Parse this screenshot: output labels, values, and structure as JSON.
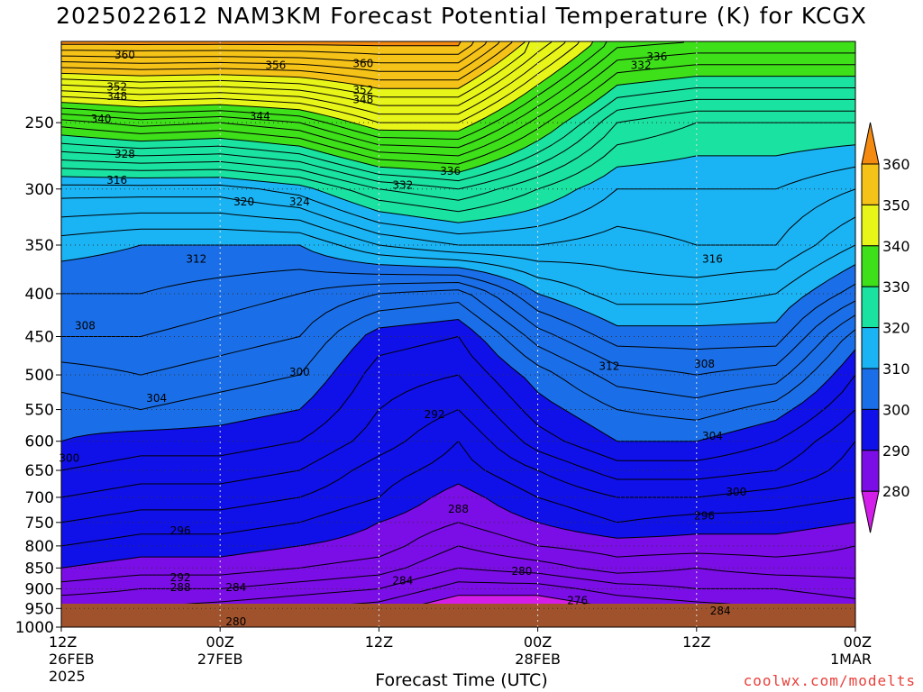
{
  "chart_data": {
    "type": "heatmap",
    "title": "2025022612 NAM3KM Forecast Potential Temperature (K) for KCGX",
    "xlabel": "Forecast Time (UTC)",
    "ylabel": "",
    "y_ticks": [
      250,
      300,
      350,
      400,
      450,
      500,
      550,
      600,
      650,
      700,
      750,
      800,
      850,
      900,
      950,
      1000
    ],
    "ylim": [
      1000,
      200
    ],
    "y_scale": "log-pressure",
    "x_ticks": [
      {
        "time": "2025-02-26T12Z",
        "lines": [
          "12Z",
          "26FEB",
          "2025"
        ]
      },
      {
        "time": "2025-02-27T00Z",
        "lines": [
          "00Z",
          "27FEB"
        ]
      },
      {
        "time": "2025-02-27T12Z",
        "lines": [
          "12Z"
        ]
      },
      {
        "time": "2025-02-28T00Z",
        "lines": [
          "00Z",
          "28FEB"
        ]
      },
      {
        "time": "2025-02-28T12Z",
        "lines": [
          "12Z"
        ]
      },
      {
        "time": "2025-03-01T00Z",
        "lines": [
          "00Z",
          "1MAR"
        ]
      }
    ],
    "colorbar": {
      "levels": [
        280,
        290,
        300,
        310,
        320,
        330,
        340,
        350,
        360
      ],
      "colors": [
        "#d21ee8",
        "#7b0de6",
        "#1010e8",
        "#1a6fe8",
        "#1ab4f5",
        "#1ae2a0",
        "#3ee01a",
        "#e8f518",
        "#f5c218",
        "#f58a10"
      ]
    },
    "terrain_color": "#a0522d",
    "grid": true,
    "contour_interval": 2,
    "contour_labels": [
      {
        "value": 360,
        "t": 0.08,
        "p": 207
      },
      {
        "value": 356,
        "t": 0.27,
        "p": 213
      },
      {
        "value": 360,
        "t": 0.38,
        "p": 212
      },
      {
        "value": 352,
        "t": 0.07,
        "p": 226
      },
      {
        "value": 348,
        "t": 0.07,
        "p": 232
      },
      {
        "value": 352,
        "t": 0.38,
        "p": 228
      },
      {
        "value": 348,
        "t": 0.38,
        "p": 234
      },
      {
        "value": 344,
        "t": 0.25,
        "p": 245
      },
      {
        "value": 340,
        "t": 0.05,
        "p": 247
      },
      {
        "value": 336,
        "t": 0.75,
        "p": 208
      },
      {
        "value": 332,
        "t": 0.73,
        "p": 213
      },
      {
        "value": 328,
        "t": 0.08,
        "p": 272
      },
      {
        "value": 336,
        "t": 0.49,
        "p": 285
      },
      {
        "value": 332,
        "t": 0.43,
        "p": 296
      },
      {
        "value": 316,
        "t": 0.07,
        "p": 292
      },
      {
        "value": 320,
        "t": 0.23,
        "p": 310
      },
      {
        "value": 324,
        "t": 0.3,
        "p": 310
      },
      {
        "value": 312,
        "t": 0.17,
        "p": 363
      },
      {
        "value": 316,
        "t": 0.82,
        "p": 363
      },
      {
        "value": 308,
        "t": 0.03,
        "p": 436
      },
      {
        "value": 312,
        "t": 0.69,
        "p": 487
      },
      {
        "value": 300,
        "t": 0.3,
        "p": 495
      },
      {
        "value": 308,
        "t": 0.81,
        "p": 484
      },
      {
        "value": 304,
        "t": 0.12,
        "p": 532
      },
      {
        "value": 292,
        "t": 0.47,
        "p": 556
      },
      {
        "value": 304,
        "t": 0.82,
        "p": 590
      },
      {
        "value": 300,
        "t": 0.01,
        "p": 627
      },
      {
        "value": 300,
        "t": 0.85,
        "p": 688
      },
      {
        "value": 288,
        "t": 0.5,
        "p": 721
      },
      {
        "value": 296,
        "t": 0.81,
        "p": 735
      },
      {
        "value": 296,
        "t": 0.15,
        "p": 765
      },
      {
        "value": 292,
        "t": 0.15,
        "p": 870
      },
      {
        "value": 288,
        "t": 0.15,
        "p": 895
      },
      {
        "value": 284,
        "t": 0.22,
        "p": 895
      },
      {
        "value": 284,
        "t": 0.43,
        "p": 878
      },
      {
        "value": 280,
        "t": 0.58,
        "p": 856
      },
      {
        "value": 276,
        "t": 0.65,
        "p": 927
      },
      {
        "value": 284,
        "t": 0.83,
        "p": 954
      },
      {
        "value": 280,
        "t": 0.22,
        "p": 983
      }
    ],
    "profiles": [
      {
        "t": 0.0,
        "theta": [
          361,
          333,
          317,
          311,
          308,
          306,
          303,
          301,
          300,
          298,
          296,
          294,
          292,
          290,
          287,
          284
        ]
      },
      {
        "t": 0.1,
        "theta": [
          361,
          335,
          317,
          310,
          308,
          306,
          304,
          302,
          299,
          297,
          295,
          293,
          291,
          289,
          286,
          284
        ]
      },
      {
        "t": 0.2,
        "theta": [
          361,
          334,
          317,
          310,
          307,
          305,
          303,
          301,
          299,
          297,
          295,
          293,
          291,
          289,
          286,
          283
        ]
      },
      {
        "t": 0.3,
        "theta": [
          361,
          336,
          319,
          310,
          306,
          304,
          302,
          300,
          298,
          296,
          294,
          292,
          290,
          288,
          285,
          282
        ]
      },
      {
        "t": 0.4,
        "theta": [
          361,
          342,
          324,
          314,
          304,
          299,
          297,
          296,
          295,
          293,
          292,
          290,
          289,
          287,
          284,
          281
        ]
      },
      {
        "t": 0.5,
        "theta": [
          361,
          342,
          326,
          316,
          303,
          298,
          296,
          294,
          292,
          291,
          289,
          288,
          286,
          284,
          281,
          278
        ]
      },
      {
        "t": 0.6,
        "theta": [
          348,
          333,
          322,
          316,
          310,
          305,
          301,
          299,
          297,
          294,
          292,
          290,
          288,
          285,
          281,
          278
        ]
      },
      {
        "t": 0.7,
        "theta": [
          337,
          324,
          318,
          315,
          313,
          309,
          305,
          302,
          300,
          297,
          294,
          292,
          289,
          287,
          283,
          280
        ]
      },
      {
        "t": 0.8,
        "theta": [
          336,
          322,
          318,
          316,
          313,
          309,
          306,
          303,
          300,
          297,
          294,
          291,
          289,
          286,
          284,
          281
        ]
      },
      {
        "t": 0.9,
        "theta": [
          336,
          322,
          318,
          316,
          312,
          309,
          305,
          301,
          298,
          296,
          293,
          291,
          289,
          287,
          284,
          282
        ]
      },
      {
        "t": 1.0,
        "theta": [
          336,
          322,
          316,
          312,
          307,
          301,
          298,
          296,
          294,
          293,
          292,
          290,
          288,
          287,
          285,
          283
        ]
      }
    ]
  },
  "credit": "coolwx.com/modelts"
}
